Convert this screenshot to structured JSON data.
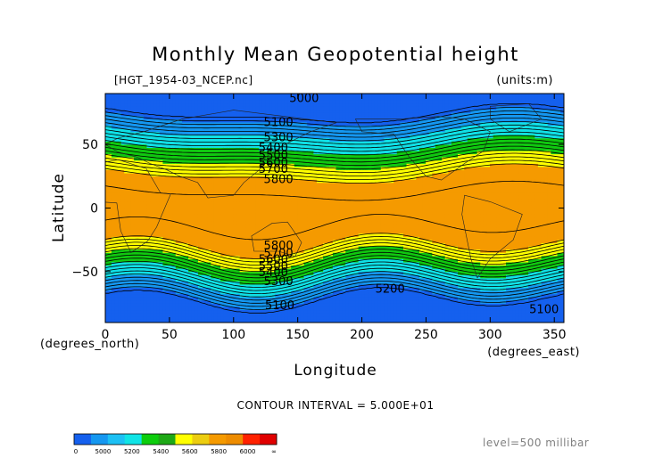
{
  "chart_data": {
    "type": "heatmap",
    "title": "Monthly Mean Geopotential height",
    "file_label": "[HGT_1954-03_NCEP.nc]",
    "units_label": "(units:m)",
    "xlabel": "Longitude",
    "ylabel": "Latitude",
    "x_unit_label": "(degrees_east)",
    "y_unit_label": "(degrees_north)",
    "xlim": [
      0,
      357.5
    ],
    "ylim": [
      -90,
      90
    ],
    "x_ticks": [
      0,
      50,
      100,
      150,
      200,
      250,
      300,
      350
    ],
    "y_ticks": [
      50,
      0,
      -50
    ],
    "contour_interval_text": "CONTOUR INTERVAL = 5.000E+01",
    "level_text": "level=500 millibar",
    "colorbar": {
      "labels": [
        "0",
        "5000",
        "5200",
        "5400",
        "5600",
        "5800",
        "6000",
        "∞"
      ],
      "colors": [
        "#1560ee",
        "#1597f0",
        "#1cc0f4",
        "#10e4e6",
        "#0dcd0d",
        "#1ea816",
        "#ffff00",
        "#eccd10",
        "#f59a00",
        "#ee8c00",
        "#ff2200",
        "#e00000"
      ]
    },
    "bands": [
      {
        "lo": 5800,
        "hi": 5900,
        "color": "#f59a00"
      },
      {
        "lo": 5600,
        "hi": 5800,
        "color": "#ffff00"
      },
      {
        "lo": 5400,
        "hi": 5600,
        "color": "#10c810"
      },
      {
        "lo": 5200,
        "hi": 5400,
        "color": "#10e0e6"
      },
      {
        "lo": 5000,
        "hi": 5200,
        "color": "#1597f0"
      },
      {
        "lo": 4900,
        "hi": 5000,
        "color": "#1560ee"
      }
    ],
    "contour_labels": [
      {
        "text": "5000",
        "lon": 155,
        "lat": 87
      },
      {
        "text": "5100",
        "lon": 135,
        "lat": 68
      },
      {
        "text": "5300",
        "lon": 135,
        "lat": 56
      },
      {
        "text": "5400",
        "lon": 131,
        "lat": 48
      },
      {
        "text": "5500",
        "lon": 131,
        "lat": 42
      },
      {
        "text": "5600",
        "lon": 131,
        "lat": 36
      },
      {
        "text": "5700",
        "lon": 131,
        "lat": 31
      },
      {
        "text": "5800",
        "lon": 135,
        "lat": 23
      },
      {
        "text": "5800",
        "lon": 135,
        "lat": -29
      },
      {
        "text": "5700",
        "lon": 135,
        "lat": -35
      },
      {
        "text": "5600",
        "lon": 131,
        "lat": -40
      },
      {
        "text": "5500",
        "lon": 131,
        "lat": -45
      },
      {
        "text": "5400",
        "lon": 131,
        "lat": -50
      },
      {
        "text": "5300",
        "lon": 135,
        "lat": -57
      },
      {
        "text": "5200",
        "lon": 222,
        "lat": -63
      },
      {
        "text": "5100",
        "lon": 136,
        "lat": -76
      },
      {
        "text": "5100",
        "lon": 342,
        "lat": -79
      }
    ]
  }
}
